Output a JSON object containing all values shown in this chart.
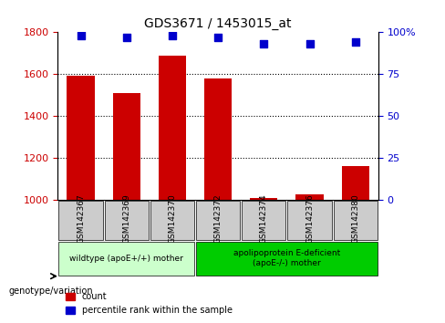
{
  "title": "GDS3671 / 1453015_at",
  "categories": [
    "GSM142367",
    "GSM142369",
    "GSM142370",
    "GSM142372",
    "GSM142374",
    "GSM142376",
    "GSM142380"
  ],
  "bar_values": [
    1595,
    1510,
    1690,
    1580,
    1010,
    1030,
    1165
  ],
  "percentile_values": [
    98,
    97,
    98,
    97,
    93,
    93,
    94
  ],
  "ylim_left": [
    1000,
    1800
  ],
  "ylim_right": [
    0,
    100
  ],
  "yticks_left": [
    1000,
    1200,
    1400,
    1600,
    1800
  ],
  "yticks_right": [
    0,
    25,
    50,
    75,
    100
  ],
  "ytick_labels_right": [
    "0",
    "25",
    "50",
    "75",
    "100%"
  ],
  "bar_color": "#cc0000",
  "percentile_color": "#0000cc",
  "grid_color": "#000000",
  "group1_label": "wildtype (apoE+/+) mother",
  "group2_label": "apolipoprotein E-deficient\n(apoE-/-) mother",
  "group1_indices": [
    0,
    1,
    2
  ],
  "group2_indices": [
    3,
    4,
    5,
    6
  ],
  "group1_color": "#ccffcc",
  "group2_color": "#00cc00",
  "label_area_color": "#cccccc",
  "legend_count_label": "count",
  "legend_percentile_label": "percentile rank within the sample",
  "xlabel_left": "genotype/variation"
}
